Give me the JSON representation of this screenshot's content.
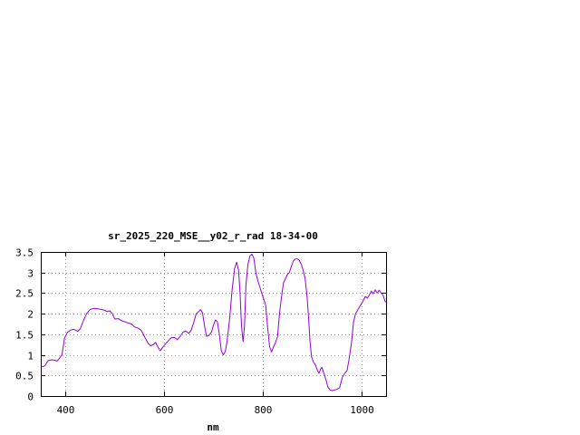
{
  "chart_data": {
    "type": "line",
    "title": "sr_2025_220_MSE__y02_r_rad 18-34-00",
    "xlabel": "nm",
    "ylabel": "",
    "xlim": [
      350,
      1050
    ],
    "ylim": [
      0,
      3.5
    ],
    "xticks": [
      400,
      600,
      800,
      1000
    ],
    "yticks": [
      0,
      0.5,
      1,
      1.5,
      2,
      2.5,
      3,
      3.5
    ],
    "ytick_labels": [
      "0",
      "0.5",
      "1",
      "1.5",
      "2",
      "2.5",
      "3",
      "3.5"
    ],
    "grid": true,
    "series_color": "#9400d3",
    "series": [
      {
        "points": [
          [
            350,
            0.7
          ],
          [
            358,
            0.73
          ],
          [
            365,
            0.86
          ],
          [
            372,
            0.88
          ],
          [
            378,
            0.87
          ],
          [
            383,
            0.85
          ],
          [
            388,
            0.92
          ],
          [
            393,
            1.0
          ],
          [
            398,
            1.4
          ],
          [
            404,
            1.55
          ],
          [
            410,
            1.6
          ],
          [
            416,
            1.62
          ],
          [
            421,
            1.6
          ],
          [
            425,
            1.57
          ],
          [
            430,
            1.63
          ],
          [
            437,
            1.85
          ],
          [
            443,
            2.0
          ],
          [
            450,
            2.1
          ],
          [
            458,
            2.13
          ],
          [
            466,
            2.12
          ],
          [
            474,
            2.1
          ],
          [
            480,
            2.08
          ],
          [
            485,
            2.05
          ],
          [
            490,
            2.07
          ],
          [
            495,
            2.0
          ],
          [
            500,
            1.87
          ],
          [
            507,
            1.88
          ],
          [
            514,
            1.83
          ],
          [
            521,
            1.8
          ],
          [
            528,
            1.77
          ],
          [
            534,
            1.75
          ],
          [
            540,
            1.68
          ],
          [
            547,
            1.65
          ],
          [
            553,
            1.6
          ],
          [
            557,
            1.52
          ],
          [
            562,
            1.4
          ],
          [
            568,
            1.27
          ],
          [
            573,
            1.22
          ],
          [
            578,
            1.25
          ],
          [
            583,
            1.3
          ],
          [
            588,
            1.18
          ],
          [
            592,
            1.1
          ],
          [
            597,
            1.18
          ],
          [
            603,
            1.27
          ],
          [
            609,
            1.35
          ],
          [
            615,
            1.42
          ],
          [
            621,
            1.42
          ],
          [
            627,
            1.37
          ],
          [
            632,
            1.44
          ],
          [
            638,
            1.55
          ],
          [
            644,
            1.58
          ],
          [
            650,
            1.52
          ],
          [
            655,
            1.6
          ],
          [
            660,
            1.78
          ],
          [
            665,
            2.0
          ],
          [
            670,
            2.05
          ],
          [
            674,
            2.1
          ],
          [
            678,
            2.02
          ],
          [
            682,
            1.7
          ],
          [
            686,
            1.45
          ],
          [
            691,
            1.47
          ],
          [
            696,
            1.55
          ],
          [
            700,
            1.72
          ],
          [
            704,
            1.85
          ],
          [
            708,
            1.8
          ],
          [
            712,
            1.5
          ],
          [
            716,
            1.1
          ],
          [
            720,
            1.0
          ],
          [
            724,
            1.08
          ],
          [
            728,
            1.35
          ],
          [
            733,
            1.9
          ],
          [
            738,
            2.6
          ],
          [
            743,
            3.1
          ],
          [
            747,
            3.25
          ],
          [
            751,
            3.05
          ],
          [
            754,
            2.5
          ],
          [
            757,
            1.7
          ],
          [
            760,
            1.32
          ],
          [
            763,
            1.7
          ],
          [
            766,
            2.7
          ],
          [
            770,
            3.2
          ],
          [
            774,
            3.4
          ],
          [
            778,
            3.45
          ],
          [
            782,
            3.35
          ],
          [
            786,
            3.0
          ],
          [
            790,
            2.8
          ],
          [
            794,
            2.65
          ],
          [
            798,
            2.5
          ],
          [
            802,
            2.35
          ],
          [
            806,
            2.2
          ],
          [
            810,
            1.65
          ],
          [
            814,
            1.2
          ],
          [
            818,
            1.07
          ],
          [
            822,
            1.2
          ],
          [
            826,
            1.3
          ],
          [
            830,
            1.45
          ],
          [
            834,
            2.0
          ],
          [
            838,
            2.4
          ],
          [
            842,
            2.75
          ],
          [
            846,
            2.85
          ],
          [
            850,
            2.95
          ],
          [
            854,
            3.0
          ],
          [
            858,
            3.15
          ],
          [
            862,
            3.28
          ],
          [
            866,
            3.33
          ],
          [
            870,
            3.33
          ],
          [
            874,
            3.3
          ],
          [
            878,
            3.2
          ],
          [
            882,
            3.05
          ],
          [
            886,
            2.85
          ],
          [
            890,
            2.4
          ],
          [
            893,
            1.9
          ],
          [
            896,
            1.3
          ],
          [
            899,
            0.95
          ],
          [
            903,
            0.82
          ],
          [
            907,
            0.75
          ],
          [
            911,
            0.62
          ],
          [
            914,
            0.55
          ],
          [
            917,
            0.65
          ],
          [
            920,
            0.7
          ],
          [
            924,
            0.55
          ],
          [
            928,
            0.4
          ],
          [
            932,
            0.22
          ],
          [
            936,
            0.15
          ],
          [
            941,
            0.13
          ],
          [
            946,
            0.15
          ],
          [
            951,
            0.17
          ],
          [
            956,
            0.2
          ],
          [
            961,
            0.45
          ],
          [
            966,
            0.55
          ],
          [
            971,
            0.62
          ],
          [
            975,
            0.9
          ],
          [
            980,
            1.3
          ],
          [
            984,
            1.8
          ],
          [
            988,
            2.0
          ],
          [
            993,
            2.1
          ],
          [
            998,
            2.2
          ],
          [
            1003,
            2.3
          ],
          [
            1008,
            2.42
          ],
          [
            1012,
            2.38
          ],
          [
            1016,
            2.45
          ],
          [
            1020,
            2.55
          ],
          [
            1024,
            2.48
          ],
          [
            1028,
            2.58
          ],
          [
            1032,
            2.5
          ],
          [
            1036,
            2.57
          ],
          [
            1040,
            2.5
          ],
          [
            1044,
            2.45
          ],
          [
            1048,
            2.3
          ],
          [
            1050,
            2.28
          ]
        ]
      }
    ]
  }
}
